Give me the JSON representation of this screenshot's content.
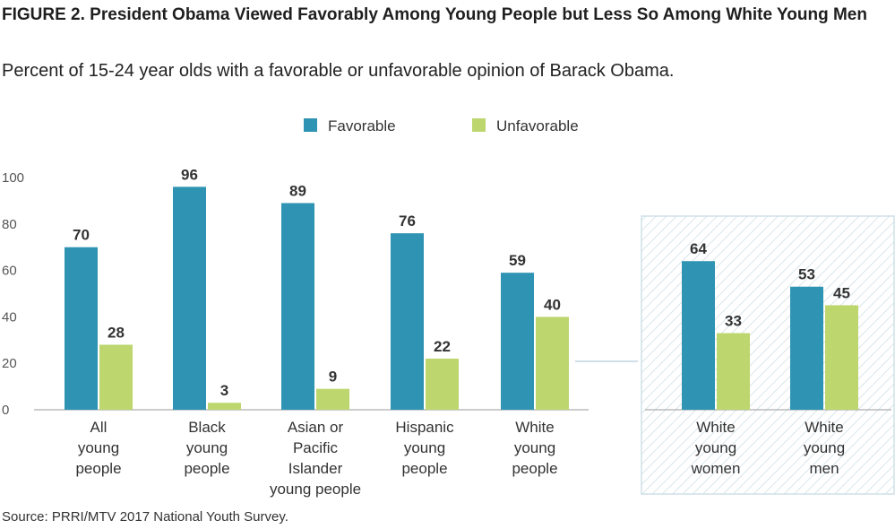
{
  "title": "FIGURE 2. President Obama Viewed Favorably Among Young People but Less So Among White Young Men",
  "subtitle": "Percent of 15-24 year olds with a favorable or unfavorable opinion of Barack Obama.",
  "source": "Source: PRRI/MTV 2017 National Youth Survey.",
  "colors": {
    "favorable": "#2f93b3",
    "unfavorable": "#bdd66e",
    "inset_border": "#cfe0e8",
    "inset_hatch": "#cddde5"
  },
  "chart_data": {
    "type": "bar",
    "yticks": [
      0,
      20,
      40,
      60,
      80,
      100
    ],
    "ylim": [
      0,
      100
    ],
    "legend_position": "top-center",
    "series": [
      {
        "name": "Favorable",
        "values": [
          70,
          96,
          89,
          76,
          59,
          64,
          53
        ]
      },
      {
        "name": "Unfavorable",
        "values": [
          28,
          3,
          9,
          22,
          40,
          33,
          45
        ]
      }
    ],
    "categories": [
      [
        "All",
        "young",
        "people"
      ],
      [
        "Black",
        "young",
        "people"
      ],
      [
        "Asian or",
        "Pacific",
        "Islander",
        "young people"
      ],
      [
        "Hispanic",
        "young",
        "people"
      ],
      [
        "White",
        "young",
        "people"
      ],
      [
        "White",
        "young",
        "women"
      ],
      [
        "White",
        "young",
        "men"
      ]
    ],
    "inset_categories": [
      5,
      6
    ]
  }
}
